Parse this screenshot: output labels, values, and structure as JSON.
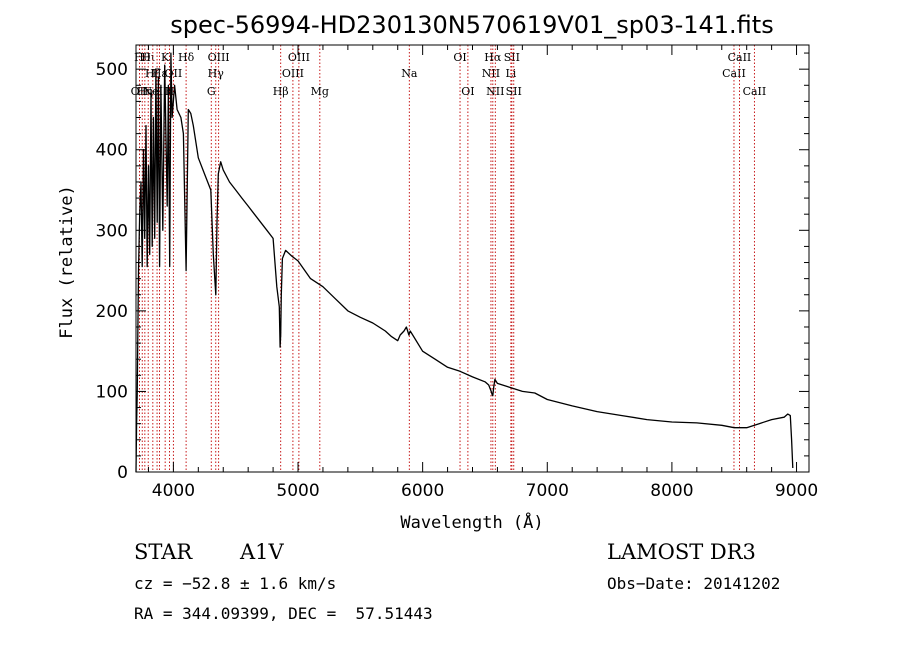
{
  "chart_data": {
    "type": "line",
    "title": "spec-56994-HD230130N570619V01_sp03-141.fits",
    "xlabel": "Wavelength (Å)",
    "ylabel": "Flux (relative)",
    "xlim": [
      3700,
      9100
    ],
    "ylim": [
      0,
      530
    ],
    "x_ticks": [
      4000,
      5000,
      6000,
      7000,
      8000,
      9000
    ],
    "x_tick_labels": [
      "4000",
      "5000",
      "6000",
      "7000",
      "8000",
      "9000"
    ],
    "y_ticks": [
      0,
      100,
      200,
      300,
      400,
      500
    ],
    "y_tick_labels": [
      "0",
      "100",
      "200",
      "300",
      "400",
      "500"
    ],
    "grid": false,
    "series": [
      {
        "name": "spectrum",
        "x": [
          3700,
          3705,
          3710,
          3720,
          3730,
          3740,
          3750,
          3760,
          3770,
          3780,
          3790,
          3800,
          3810,
          3820,
          3830,
          3840,
          3850,
          3860,
          3870,
          3880,
          3889,
          3900,
          3915,
          3930,
          3950,
          3960,
          3970,
          3980,
          3990,
          4010,
          4030,
          4060,
          4080,
          4102,
          4120,
          4140,
          4160,
          4200,
          4250,
          4300,
          4320,
          4340,
          4350,
          4360,
          4380,
          4400,
          4450,
          4500,
          4550,
          4600,
          4650,
          4700,
          4750,
          4800,
          4830,
          4850,
          4856,
          4861,
          4866,
          4875,
          4900,
          4950,
          5000,
          5100,
          5200,
          5300,
          5400,
          5500,
          5600,
          5700,
          5750,
          5800,
          5820,
          5850,
          5870,
          5890,
          5900,
          5920,
          6000,
          6100,
          6200,
          6300,
          6400,
          6500,
          6530,
          6550,
          6560,
          6563,
          6570,
          6580,
          6600,
          6700,
          6800,
          6900,
          7000,
          7200,
          7400,
          7600,
          7800,
          8000,
          8200,
          8400,
          8500,
          8600,
          8700,
          8800,
          8900,
          8930,
          8950,
          8960,
          8970
        ],
        "y": [
          0,
          60,
          95,
          250,
          320,
          360,
          255,
          400,
          290,
          430,
          255,
          380,
          270,
          470,
          280,
          440,
          290,
          500,
          310,
          490,
          255,
          480,
          300,
          505,
          330,
          480,
          255,
          520,
          440,
          480,
          450,
          440,
          420,
          250,
          450,
          445,
          430,
          390,
          370,
          350,
          270,
          220,
          310,
          370,
          385,
          375,
          360,
          350,
          340,
          330,
          320,
          310,
          300,
          290,
          230,
          205,
          155,
          170,
          220,
          265,
          275,
          268,
          262,
          240,
          230,
          215,
          200,
          192,
          185,
          175,
          168,
          163,
          170,
          175,
          180,
          170,
          175,
          170,
          150,
          140,
          130,
          125,
          118,
          112,
          108,
          100,
          95,
          95,
          105,
          115,
          110,
          105,
          100,
          98,
          90,
          82,
          75,
          70,
          65,
          62,
          61,
          58,
          55,
          55,
          60,
          65,
          68,
          72,
          70,
          40,
          5
        ]
      }
    ],
    "lines": [
      {
        "wavelength": 3728,
        "label": "OII",
        "row": 3
      },
      {
        "wavelength": 3750,
        "label": "Hθ",
        "row": 1
      },
      {
        "wavelength": 3771,
        "label": "Hη",
        "row": 3
      },
      {
        "wavelength": 3798,
        "label": "Hι",
        "row": 1
      },
      {
        "wavelength": 3835,
        "label": "Hζ",
        "row": 2
      },
      {
        "wavelength": 3869,
        "label": "NeIII",
        "row": 3
      },
      {
        "wavelength": 3889,
        "label": "Hε",
        "row": 2
      },
      {
        "wavelength": 3934,
        "label": "K",
        "row": 1
      },
      {
        "wavelength": 3969,
        "label": "H",
        "row": 3
      },
      {
        "wavelength": 4000,
        "label": "OII",
        "row": 2
      },
      {
        "wavelength": 4102,
        "label": "Hδ",
        "row": 1
      },
      {
        "wavelength": 4304,
        "label": "G",
        "row": 3
      },
      {
        "wavelength": 4340,
        "label": "Hγ",
        "row": 2
      },
      {
        "wavelength": 4363,
        "label": "OIII",
        "row": 1
      },
      {
        "wavelength": 4861,
        "label": "Hβ",
        "row": 3
      },
      {
        "wavelength": 4959,
        "label": "OIII",
        "row": 2
      },
      {
        "wavelength": 5007,
        "label": "OIII",
        "row": 1
      },
      {
        "wavelength": 5175,
        "label": "Mg",
        "row": 3
      },
      {
        "wavelength": 5893,
        "label": "Na",
        "row": 2
      },
      {
        "wavelength": 6300,
        "label": "OI",
        "row": 1
      },
      {
        "wavelength": 6363,
        "label": "OI",
        "row": 3
      },
      {
        "wavelength": 6548,
        "label": "NII",
        "row": 2
      },
      {
        "wavelength": 6563,
        "label": "Hα",
        "row": 1
      },
      {
        "wavelength": 6583,
        "label": "NII",
        "row": 3
      },
      {
        "wavelength": 6708,
        "label": "Li",
        "row": 2
      },
      {
        "wavelength": 6716,
        "label": "SII",
        "row": 1
      },
      {
        "wavelength": 6731,
        "label": "SII",
        "row": 3
      },
      {
        "wavelength": 8498,
        "label": "CaII",
        "row": 2
      },
      {
        "wavelength": 8542,
        "label": "CaII",
        "row": 1
      },
      {
        "wavelength": 8662,
        "label": "CaII",
        "row": 3
      }
    ],
    "colors": {
      "spectrum": "#000000",
      "lines": "#c00000"
    }
  },
  "info": {
    "object_class": "STAR",
    "subclass": "A1V",
    "survey": "LAMOST DR3",
    "cz": "cz = −52.8 ± 1.6 km/s",
    "obs_date": "Obs−Date: 20141202",
    "coords": "RA = 344.09399, DEC =  57.51443"
  }
}
